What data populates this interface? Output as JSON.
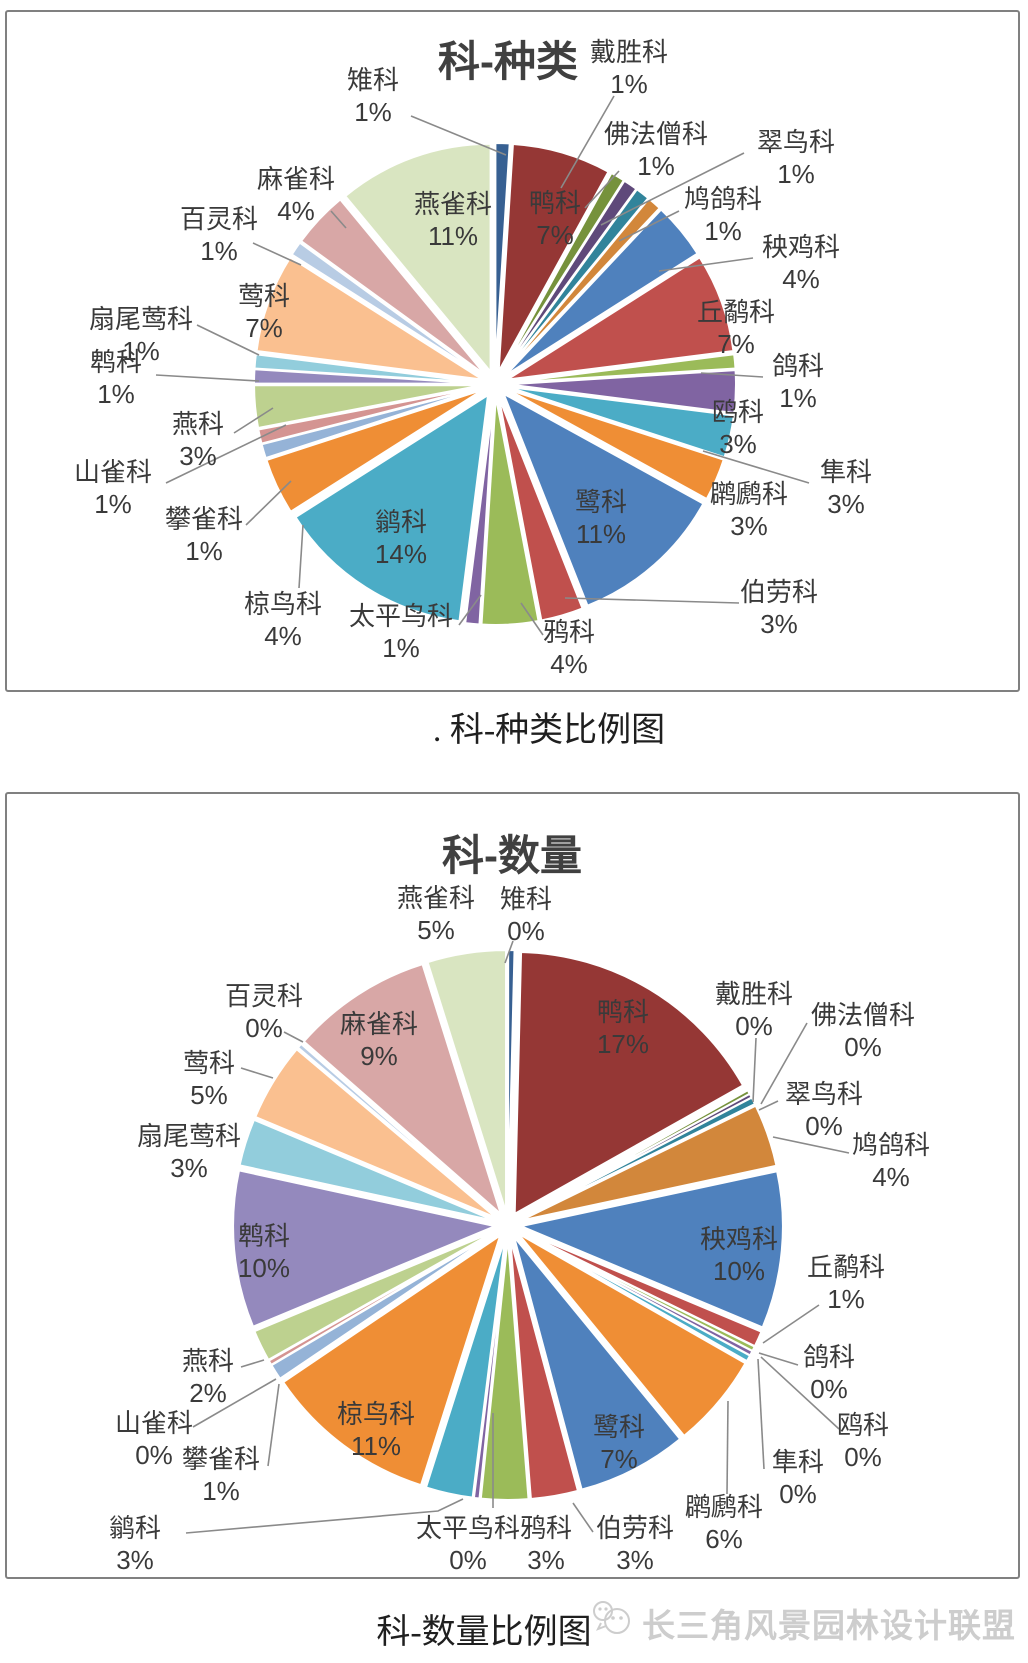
{
  "page": {
    "background": "#ffffff",
    "panel_border_color": "#808080"
  },
  "text_color": "#3a3a3a",
  "title_color": "#404040",
  "leader_color": "#8a8a8a",
  "captions": {
    "chart1": ". 科-种类比例图",
    "chart2": "科-数量比例图"
  },
  "watermark": {
    "text": "长三角风景园林设计联盟",
    "logo": "wechat-icon",
    "color": "#cdcdcd"
  },
  "palette": [
    "#376092",
    "#953735",
    "#76923C",
    "#5F497A",
    "#31849B",
    "#D2873B",
    "#4F81BD",
    "#C0504D",
    "#9BBB59",
    "#8064A2",
    "#4BACC6",
    "#EF8E35",
    "#4F81BD",
    "#C0504D",
    "#9BBB59",
    "#8064A2",
    "#4BACC6",
    "#EF8E35",
    "#95B3D7",
    "#D49492",
    "#BDD18F",
    "#9489BD",
    "#92CDDC",
    "#FAC090",
    "#B8CCE4",
    "#D8A7A6",
    "#D9E5C1"
  ],
  "chart_data": [
    {
      "type": "pie",
      "title": "科-种类",
      "unit": "%",
      "exploded": true,
      "start_angle_deg": 0,
      "clockwise": true,
      "legend": "none",
      "data_labels": "category-name and percent",
      "labels": [
        "雉科",
        "鸭科",
        "戴胜科",
        "佛法僧科",
        "翠鸟科",
        "鸠鸽科",
        "秧鸡科",
        "丘鹬科",
        "鸽科",
        "鸥科",
        "隼科",
        "䴙䴘科",
        "鹭科",
        "伯劳科",
        "鸦科",
        "太平鸟科",
        "鹟科",
        "椋鸟科",
        "攀雀科",
        "山雀科",
        "燕科",
        "鹎科",
        "扇尾莺科",
        "莺科",
        "百灵科",
        "麻雀科",
        "燕雀科"
      ],
      "values": [
        1,
        7,
        1,
        1,
        1,
        1,
        4,
        7,
        1,
        3,
        3,
        3,
        11,
        3,
        4,
        1,
        14,
        4,
        1,
        1,
        3,
        1,
        1,
        7,
        1,
        4,
        11
      ],
      "sweep": [
        1,
        7,
        1,
        1,
        1,
        1,
        4,
        7,
        1,
        3,
        3,
        3,
        11,
        3,
        4,
        1,
        14,
        4,
        1,
        1,
        3,
        1,
        1,
        7,
        1,
        4,
        11
      ]
    },
    {
      "type": "pie",
      "title": "科-数量",
      "unit": "%",
      "exploded": true,
      "start_angle_deg": 0,
      "clockwise": true,
      "legend": "none",
      "data_labels": "category-name and percent",
      "labels": [
        "雉科",
        "鸭科",
        "戴胜科",
        "佛法僧科",
        "翠鸟科",
        "鸠鸽科",
        "秧鸡科",
        "丘鹬科",
        "鸽科",
        "鸥科",
        "隼科",
        "䴙䴘科",
        "鹭科",
        "伯劳科",
        "鸦科",
        "太平鸟科",
        "鹟科",
        "椋鸟科",
        "攀雀科",
        "山雀科",
        "燕科",
        "鹎科",
        "扇尾莺科",
        "莺科",
        "百灵科",
        "麻雀科",
        "燕雀科"
      ],
      "values": [
        0,
        17,
        0,
        0,
        0,
        4,
        10,
        1,
        0,
        0,
        0,
        6,
        7,
        3,
        3,
        0,
        3,
        11,
        1,
        0,
        2,
        10,
        3,
        5,
        0,
        9,
        5
      ],
      "sweep": [
        0.4,
        17,
        0.25,
        0.25,
        0.45,
        4,
        10,
        1,
        0.3,
        0.3,
        0.4,
        6,
        7,
        3,
        3,
        0.35,
        3,
        11,
        1,
        0.3,
        2,
        10,
        3,
        5,
        0.3,
        9,
        5
      ]
    }
  ]
}
